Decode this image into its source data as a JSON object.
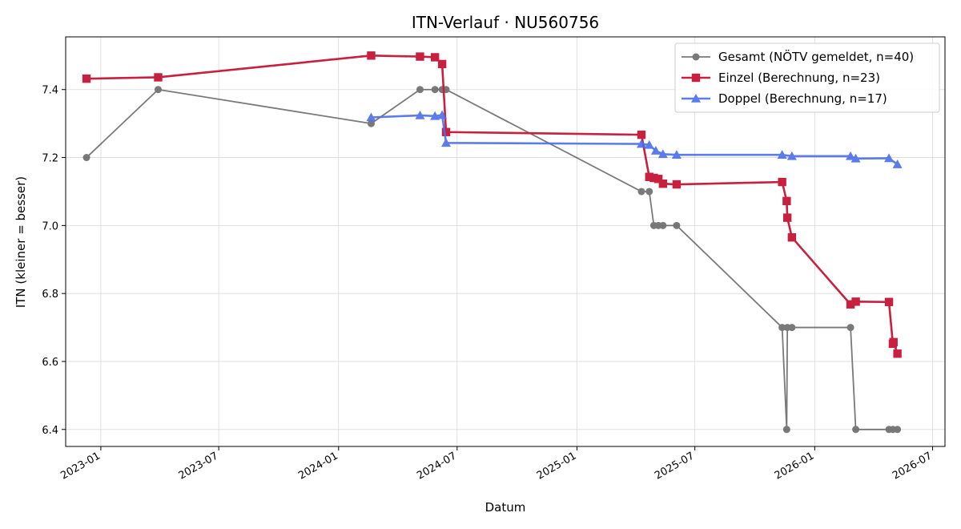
{
  "chart_data": {
    "type": "line",
    "title": "ITN-Verlauf · NU560756",
    "xlabel": "Datum",
    "ylabel": "ITN  (kleiner = besser)",
    "xlim": [
      "2022-11-08",
      "2026-07-20"
    ],
    "ylim": [
      6.35,
      7.555
    ],
    "x_ticks": [
      "2023-01",
      "2023-07",
      "2024-01",
      "2024-07",
      "2025-01",
      "2025-07",
      "2026-01",
      "2026-07"
    ],
    "y_ticks": [
      "6.4",
      "6.6",
      "6.8",
      "7.0",
      "7.2",
      "7.4"
    ],
    "grid": true,
    "legend_position": "top-right",
    "series": [
      {
        "name": "Gesamt (NÖTV gemeldet, n=40)",
        "color": "#4d4d4d",
        "marker": "circle",
        "points": [
          {
            "x": "2022-12-10",
            "y": 7.2
          },
          {
            "x": "2023-03-30",
            "y": 7.4
          },
          {
            "x": "2024-02-20",
            "y": 7.3
          },
          {
            "x": "2024-05-05",
            "y": 7.4
          },
          {
            "x": "2024-05-28",
            "y": 7.4
          },
          {
            "x": "2024-06-08",
            "y": 7.4
          },
          {
            "x": "2024-06-14",
            "y": 7.4
          },
          {
            "x": "2025-04-10",
            "y": 7.1
          },
          {
            "x": "2025-04-22",
            "y": 7.1
          },
          {
            "x": "2025-04-29",
            "y": 7.0
          },
          {
            "x": "2025-05-06",
            "y": 7.0
          },
          {
            "x": "2025-05-13",
            "y": 7.0
          },
          {
            "x": "2025-06-03",
            "y": 7.0
          },
          {
            "x": "2025-11-12",
            "y": 6.7
          },
          {
            "x": "2025-11-19",
            "y": 6.4
          },
          {
            "x": "2025-11-20",
            "y": 6.7
          },
          {
            "x": "2025-11-27",
            "y": 6.7
          },
          {
            "x": "2026-02-25",
            "y": 6.7
          },
          {
            "x": "2026-03-05",
            "y": 6.4
          },
          {
            "x": "2026-04-25",
            "y": 6.4
          },
          {
            "x": "2026-05-01",
            "y": 6.4
          },
          {
            "x": "2026-05-08",
            "y": 6.4
          }
        ]
      },
      {
        "name": "Einzel (Berechnung, n=23)",
        "color": "#c8203f",
        "marker": "square",
        "points": [
          {
            "x": "2022-12-10",
            "y": 7.432
          },
          {
            "x": "2023-03-30",
            "y": 7.436
          },
          {
            "x": "2024-02-20",
            "y": 7.5
          },
          {
            "x": "2024-05-05",
            "y": 7.497
          },
          {
            "x": "2024-05-28",
            "y": 7.495
          },
          {
            "x": "2024-06-08",
            "y": 7.475
          },
          {
            "x": "2024-06-14",
            "y": 7.275
          },
          {
            "x": "2025-04-10",
            "y": 7.267
          },
          {
            "x": "2025-04-22",
            "y": 7.143
          },
          {
            "x": "2025-04-29",
            "y": 7.14
          },
          {
            "x": "2025-05-06",
            "y": 7.137
          },
          {
            "x": "2025-05-13",
            "y": 7.123
          },
          {
            "x": "2025-06-03",
            "y": 7.121
          },
          {
            "x": "2025-11-12",
            "y": 7.128
          },
          {
            "x": "2025-11-19",
            "y": 7.072
          },
          {
            "x": "2025-11-20",
            "y": 7.023
          },
          {
            "x": "2025-11-27",
            "y": 6.965
          },
          {
            "x": "2026-02-25",
            "y": 6.768
          },
          {
            "x": "2026-03-05",
            "y": 6.776
          },
          {
            "x": "2026-04-25",
            "y": 6.775
          },
          {
            "x": "2026-05-01",
            "y": 6.652
          },
          {
            "x": "2026-05-02",
            "y": 6.657
          },
          {
            "x": "2026-05-08",
            "y": 6.623
          }
        ]
      },
      {
        "name": "Doppel (Berechnung, n=17)",
        "color": "#4a6ee8",
        "marker": "triangle",
        "points": [
          {
            "x": "2024-02-20",
            "y": 7.318
          },
          {
            "x": "2024-05-05",
            "y": 7.324
          },
          {
            "x": "2024-05-28",
            "y": 7.322
          },
          {
            "x": "2024-06-08",
            "y": 7.325
          },
          {
            "x": "2024-06-14",
            "y": 7.243
          },
          {
            "x": "2025-04-10",
            "y": 7.24
          },
          {
            "x": "2025-04-22",
            "y": 7.237
          },
          {
            "x": "2025-05-02",
            "y": 7.22
          },
          {
            "x": "2025-05-13",
            "y": 7.21
          },
          {
            "x": "2025-06-03",
            "y": 7.208
          },
          {
            "x": "2025-11-12",
            "y": 7.208
          },
          {
            "x": "2025-11-27",
            "y": 7.204
          },
          {
            "x": "2026-02-25",
            "y": 7.204
          },
          {
            "x": "2026-03-05",
            "y": 7.197
          },
          {
            "x": "2026-04-25",
            "y": 7.198
          },
          {
            "x": "2026-05-08",
            "y": 7.18
          }
        ]
      }
    ]
  }
}
